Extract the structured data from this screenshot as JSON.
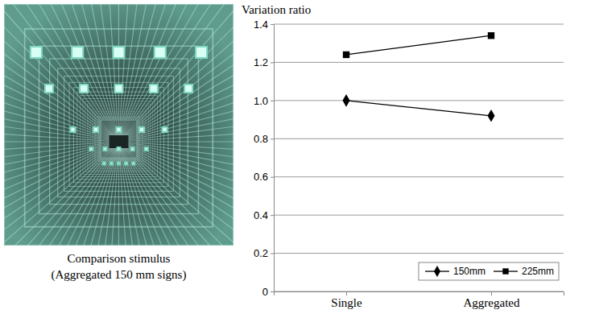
{
  "chart_data": {
    "type": "line",
    "title": "Variation ratio",
    "categories": [
      "Single",
      "Aggregated"
    ],
    "series": [
      {
        "name": "150mm",
        "color": "#000000",
        "marker": "diamond",
        "line_style": "solid",
        "values": [
          1.0,
          0.92
        ]
      },
      {
        "name": "225mm",
        "color": "#000000",
        "marker": "square",
        "line_style": "solid",
        "values": [
          1.24,
          1.34
        ]
      }
    ],
    "ylim": [
      0,
      1.4
    ],
    "yticks": [
      0,
      0.2,
      0.4,
      0.6,
      0.8,
      {
        "value": 1,
        "label": "1.0"
      },
      1.2,
      1.4
    ],
    "grid": true,
    "legend": "lower right"
  },
  "image_panel": {
    "caption_lines": [
      "Comparison stimulus",
      "(Aggregated 150 mm signs)"
    ]
  }
}
